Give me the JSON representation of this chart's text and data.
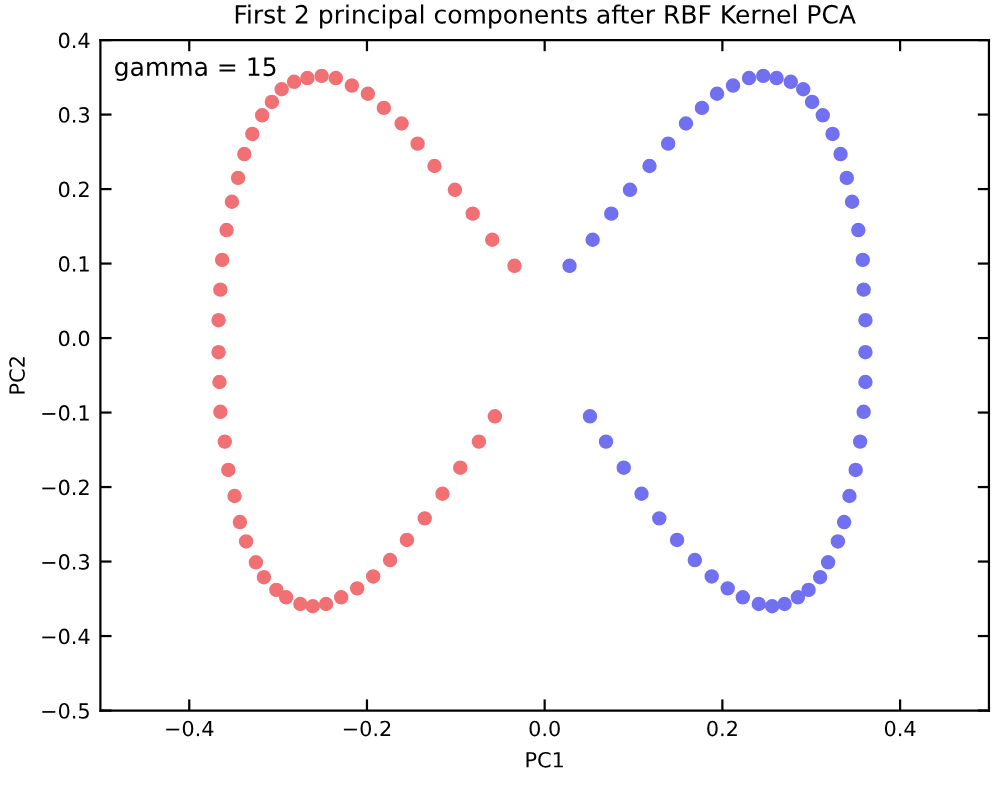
{
  "chart_data": {
    "type": "scatter",
    "title": "First 2 principal components after RBF Kernel PCA",
    "xlabel": "PC1",
    "ylabel": "PC2",
    "annotations": [
      "gamma = 15"
    ],
    "xlim": [
      -0.5,
      0.5
    ],
    "xticks": [
      {
        "value": -0.4,
        "label": "−0.4"
      },
      {
        "value": -0.2,
        "label": "−0.2"
      },
      {
        "value": 0.0,
        "label": "0.0"
      },
      {
        "value": 0.2,
        "label": "0.2"
      },
      {
        "value": 0.4,
        "label": "0.4"
      }
    ],
    "ylim": [
      -0.5,
      0.4
    ],
    "yticks": [
      {
        "value": -0.5,
        "label": "−0.5"
      },
      {
        "value": -0.4,
        "label": "−0.4"
      },
      {
        "value": -0.3,
        "label": "−0.3"
      },
      {
        "value": -0.2,
        "label": "−0.2"
      },
      {
        "value": -0.1,
        "label": "−0.1"
      },
      {
        "value": 0.0,
        "label": "0.0"
      },
      {
        "value": 0.1,
        "label": "0.1"
      },
      {
        "value": 0.2,
        "label": "0.2"
      },
      {
        "value": 0.3,
        "label": "0.3"
      },
      {
        "value": 0.4,
        "label": "0.4"
      }
    ],
    "grid": false,
    "marker": "circle",
    "series": [
      {
        "color": "#f07074",
        "x": [
          -0.034,
          -0.059,
          -0.081,
          -0.101,
          -0.124,
          -0.143,
          -0.161,
          -0.181,
          -0.199,
          -0.217,
          -0.235,
          -0.251,
          -0.267,
          -0.282,
          -0.296,
          -0.307,
          -0.318,
          -0.329,
          -0.338,
          -0.345,
          -0.352,
          -0.358,
          -0.363,
          -0.365,
          -0.367,
          -0.367,
          -0.366,
          -0.365,
          -0.36,
          -0.356,
          -0.349,
          -0.343,
          -0.336,
          -0.325,
          -0.316,
          -0.302,
          -0.291,
          -0.275,
          -0.261,
          -0.246,
          -0.229,
          -0.211,
          -0.193,
          -0.174,
          -0.155,
          -0.135,
          -0.115,
          -0.095,
          -0.074,
          -0.056
        ],
        "values": [
          0.097,
          0.132,
          0.167,
          0.199,
          0.231,
          0.261,
          0.288,
          0.309,
          0.328,
          0.339,
          0.349,
          0.352,
          0.349,
          0.344,
          0.334,
          0.317,
          0.299,
          0.274,
          0.247,
          0.215,
          0.183,
          0.145,
          0.105,
          0.065,
          0.024,
          -0.019,
          -0.059,
          -0.099,
          -0.139,
          -0.177,
          -0.212,
          -0.247,
          -0.273,
          -0.301,
          -0.321,
          -0.338,
          -0.348,
          -0.357,
          -0.36,
          -0.357,
          -0.348,
          -0.336,
          -0.32,
          -0.298,
          -0.271,
          -0.242,
          -0.209,
          -0.174,
          -0.139,
          -0.105
        ]
      },
      {
        "color": "#7070f0",
        "x": [
          0.028,
          0.054,
          0.075,
          0.096,
          0.118,
          0.139,
          0.159,
          0.177,
          0.194,
          0.212,
          0.23,
          0.246,
          0.261,
          0.277,
          0.291,
          0.301,
          0.313,
          0.324,
          0.333,
          0.34,
          0.346,
          0.353,
          0.358,
          0.359,
          0.361,
          0.361,
          0.361,
          0.359,
          0.355,
          0.35,
          0.343,
          0.337,
          0.33,
          0.319,
          0.31,
          0.297,
          0.285,
          0.27,
          0.256,
          0.241,
          0.223,
          0.206,
          0.188,
          0.169,
          0.149,
          0.129,
          0.109,
          0.089,
          0.069,
          0.051
        ],
        "values": [
          0.097,
          0.132,
          0.167,
          0.199,
          0.231,
          0.261,
          0.288,
          0.309,
          0.328,
          0.339,
          0.349,
          0.352,
          0.349,
          0.344,
          0.334,
          0.317,
          0.299,
          0.274,
          0.247,
          0.215,
          0.183,
          0.145,
          0.105,
          0.065,
          0.024,
          -0.019,
          -0.059,
          -0.099,
          -0.139,
          -0.177,
          -0.212,
          -0.247,
          -0.273,
          -0.301,
          -0.321,
          -0.338,
          -0.348,
          -0.357,
          -0.36,
          -0.357,
          -0.348,
          -0.336,
          -0.32,
          -0.298,
          -0.271,
          -0.242,
          -0.209,
          -0.174,
          -0.139,
          -0.105
        ]
      }
    ]
  }
}
